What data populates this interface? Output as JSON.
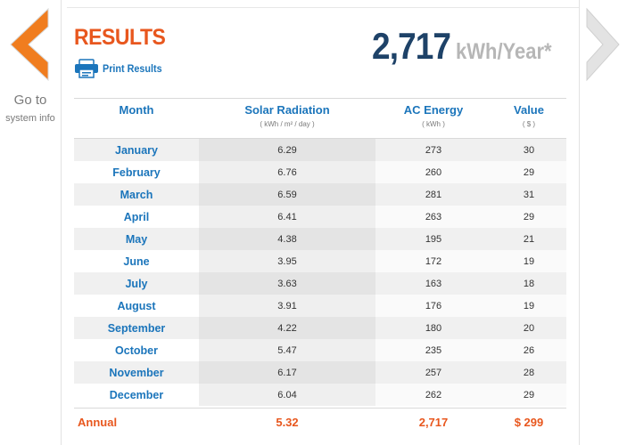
{
  "nav": {
    "back_line1": "Go to",
    "back_line2": "system info",
    "back_color": "#f07d1f",
    "forward_color": "#e0e0e0"
  },
  "header": {
    "title": "RESULTS",
    "print_label": "Print Results",
    "total_value": "2,717",
    "total_unit": "kWh/Year*"
  },
  "table": {
    "columns": [
      {
        "title": "Month",
        "subtitle": ""
      },
      {
        "title": "Solar Radiation",
        "subtitle": "( kWh / m² / day )"
      },
      {
        "title": "AC Energy",
        "subtitle": "( kWh )"
      },
      {
        "title": "Value",
        "subtitle": "( $ )"
      }
    ],
    "rows": [
      {
        "month": "January",
        "solar": "6.29",
        "ac": "273",
        "value": "30"
      },
      {
        "month": "February",
        "solar": "6.76",
        "ac": "260",
        "value": "29"
      },
      {
        "month": "March",
        "solar": "6.59",
        "ac": "281",
        "value": "31"
      },
      {
        "month": "April",
        "solar": "6.41",
        "ac": "263",
        "value": "29"
      },
      {
        "month": "May",
        "solar": "4.38",
        "ac": "195",
        "value": "21"
      },
      {
        "month": "June",
        "solar": "3.95",
        "ac": "172",
        "value": "19"
      },
      {
        "month": "July",
        "solar": "3.63",
        "ac": "163",
        "value": "18"
      },
      {
        "month": "August",
        "solar": "3.91",
        "ac": "176",
        "value": "19"
      },
      {
        "month": "September",
        "solar": "4.22",
        "ac": "180",
        "value": "20"
      },
      {
        "month": "October",
        "solar": "5.47",
        "ac": "235",
        "value": "26"
      },
      {
        "month": "November",
        "solar": "6.17",
        "ac": "257",
        "value": "28"
      },
      {
        "month": "December",
        "solar": "6.04",
        "ac": "262",
        "value": "29"
      }
    ],
    "annual": {
      "label": "Annual",
      "solar": "5.32",
      "ac": "2,717",
      "value": "$ 299"
    }
  },
  "colors": {
    "accent_orange": "#e8571e",
    "link_blue": "#1b75bb",
    "total_navy": "#1e4268"
  }
}
